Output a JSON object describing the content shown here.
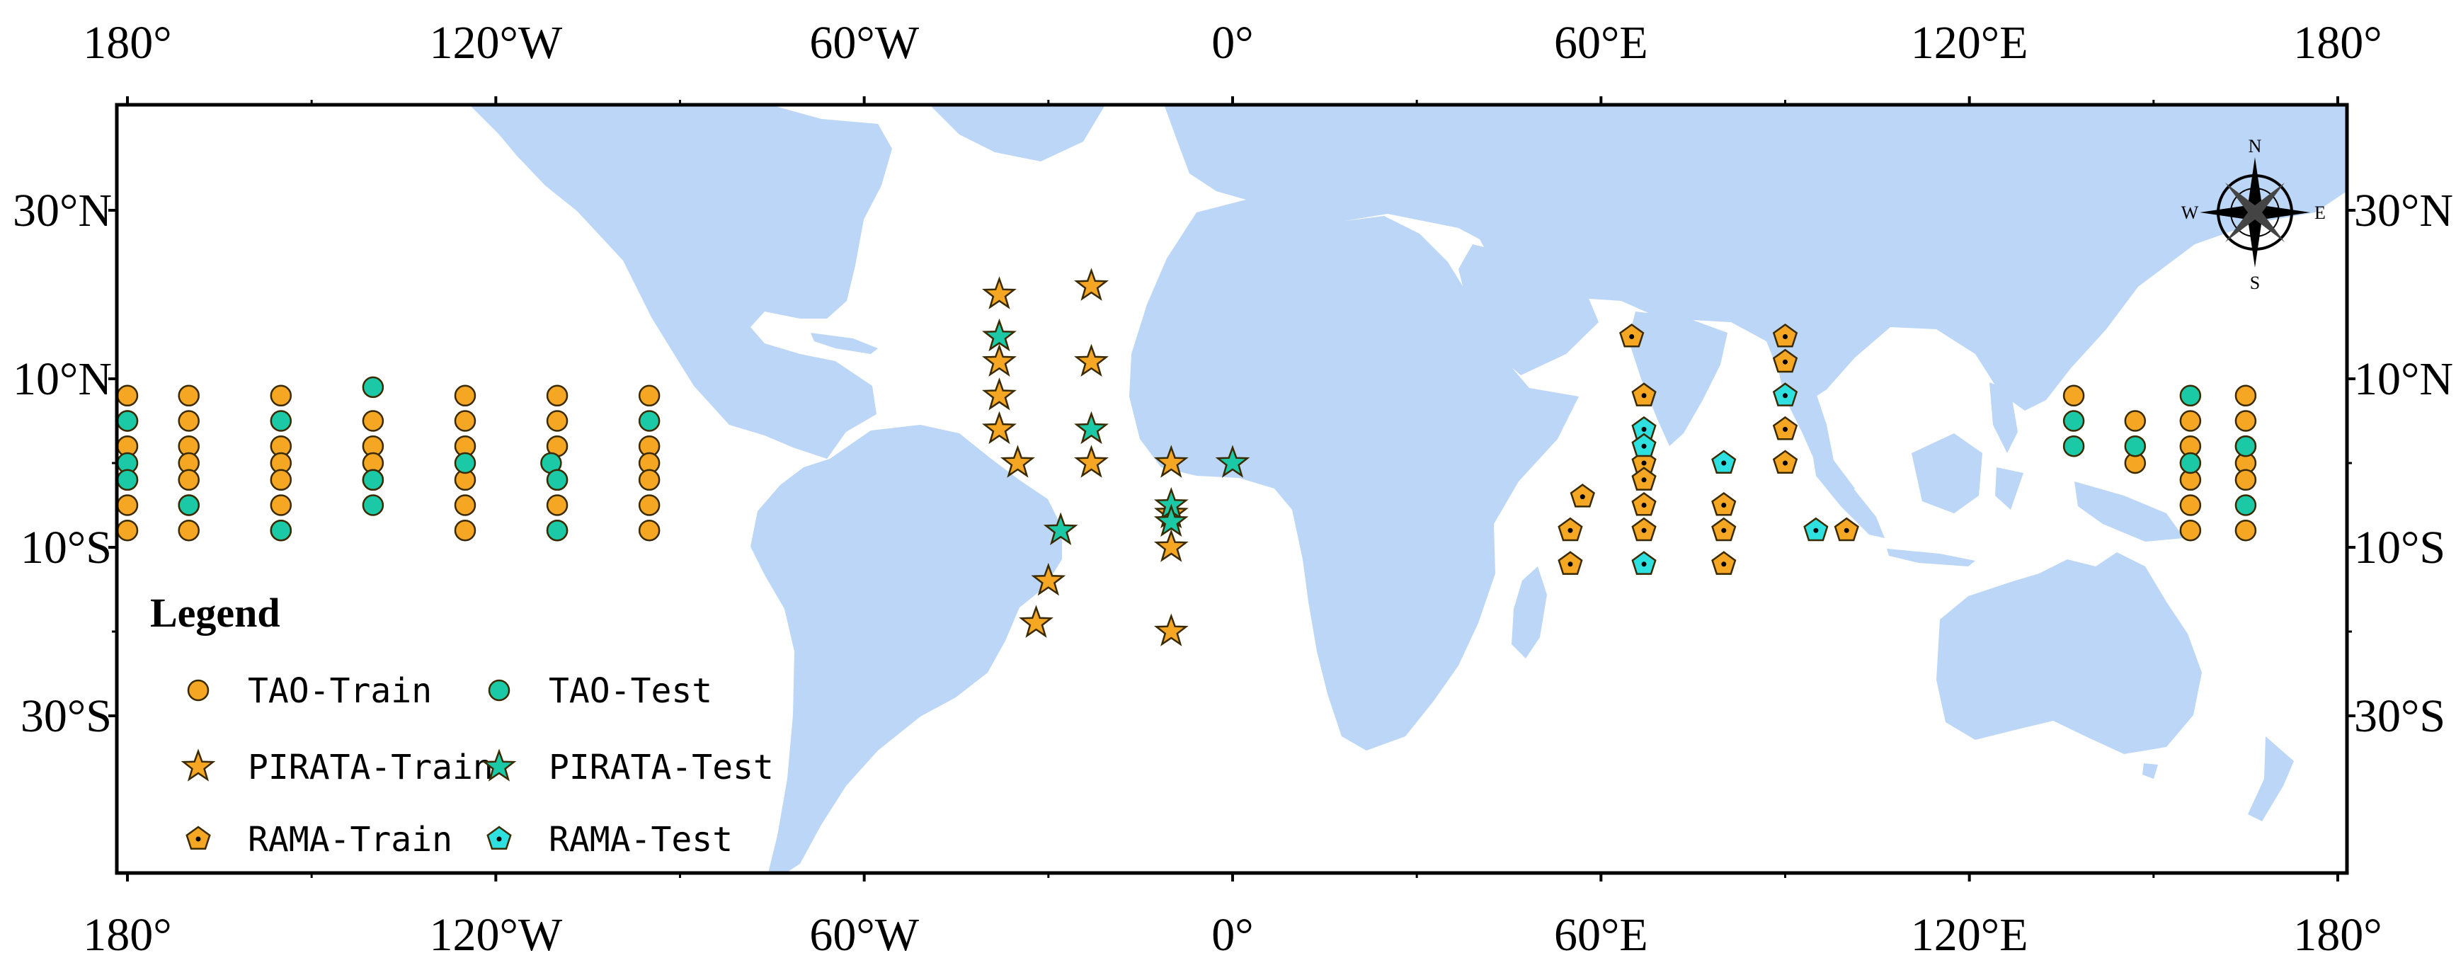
{
  "colors": {
    "land": "#bcd6f7",
    "ocean": "#ffffff",
    "frame": "#000000",
    "train": "#f5a623",
    "test": "#1cc9a6",
    "rama_test": "#2fe0e0",
    "marker_stroke": "#3a2a00"
  },
  "axes": {
    "top_ticks": [
      {
        "lon": -180,
        "label": "180°"
      },
      {
        "lon": -120,
        "label": "120°W"
      },
      {
        "lon": -60,
        "label": "60°W"
      },
      {
        "lon": 0,
        "label": "0°"
      },
      {
        "lon": 60,
        "label": "60°E"
      },
      {
        "lon": 120,
        "label": "120°E"
      },
      {
        "lon": 180,
        "label": "180°"
      }
    ],
    "bottom_ticks": [
      {
        "lon": -180,
        "label": "180°"
      },
      {
        "lon": -120,
        "label": "120°W"
      },
      {
        "lon": -60,
        "label": "60°W"
      },
      {
        "lon": 0,
        "label": "0°"
      },
      {
        "lon": 60,
        "label": "60°E"
      },
      {
        "lon": 120,
        "label": "120°E"
      },
      {
        "lon": 180,
        "label": "180°"
      }
    ],
    "left_ticks": [
      {
        "lat": 30,
        "label": "30°N"
      },
      {
        "lat": 10,
        "label": "10°N"
      },
      {
        "lat": -10,
        "label": "10°S"
      },
      {
        "lat": -30,
        "label": "30°S"
      }
    ],
    "right_ticks": [
      {
        "lat": 30,
        "label": "30°N"
      },
      {
        "lat": 10,
        "label": "10°N"
      },
      {
        "lat": -10,
        "label": "10°S"
      },
      {
        "lat": -30,
        "label": "30°S"
      }
    ]
  },
  "compass": {
    "n": "N",
    "s": "S",
    "e": "E",
    "w": "W"
  },
  "legend": {
    "title": "Legend",
    "items": [
      {
        "label": "TAO-Train",
        "shape": "circle",
        "color": "train"
      },
      {
        "label": "TAO-Test",
        "shape": "circle",
        "color": "test"
      },
      {
        "label": "PIRATA-Train",
        "shape": "star",
        "color": "train"
      },
      {
        "label": "PIRATA-Test",
        "shape": "star",
        "color": "test"
      },
      {
        "label": "RAMA-Train",
        "shape": "pentagon",
        "color": "train"
      },
      {
        "label": "RAMA-Test",
        "shape": "pentagon",
        "color": "rama_test"
      }
    ]
  },
  "buoys": {
    "tao_train": [
      [
        -180,
        8
      ],
      [
        -180,
        5
      ],
      [
        -180,
        2
      ],
      [
        -180,
        -2
      ],
      [
        -180,
        -5
      ],
      [
        -180,
        -8
      ],
      [
        -170,
        8
      ],
      [
        -170,
        5
      ],
      [
        -170,
        2
      ],
      [
        -170,
        0
      ],
      [
        -170,
        -2
      ],
      [
        -170,
        -5
      ],
      [
        -170,
        -8
      ],
      [
        -155,
        8
      ],
      [
        -155,
        2
      ],
      [
        -155,
        0
      ],
      [
        -155,
        -2
      ],
      [
        -155,
        -5
      ],
      [
        -155,
        -8
      ],
      [
        -140,
        5
      ],
      [
        -140,
        2
      ],
      [
        -140,
        0
      ],
      [
        -140,
        -2
      ],
      [
        -125,
        8
      ],
      [
        -125,
        5
      ],
      [
        -125,
        2
      ],
      [
        -125,
        -2
      ],
      [
        -125,
        -5
      ],
      [
        -125,
        -8
      ],
      [
        -110,
        8
      ],
      [
        -110,
        5
      ],
      [
        -110,
        2
      ],
      [
        -110,
        -2
      ],
      [
        -110,
        -5
      ],
      [
        -110,
        -8
      ],
      [
        -95,
        8
      ],
      [
        -95,
        2
      ],
      [
        -95,
        0
      ],
      [
        -95,
        -2
      ],
      [
        -95,
        -5
      ],
      [
        -95,
        -8
      ],
      [
        137,
        8
      ],
      [
        147,
        5
      ],
      [
        147,
        0
      ],
      [
        156,
        5
      ],
      [
        156,
        2
      ],
      [
        156,
        -2
      ],
      [
        156,
        -5
      ],
      [
        156,
        -8
      ],
      [
        165,
        8
      ],
      [
        165,
        5
      ],
      [
        165,
        2
      ],
      [
        165,
        0
      ],
      [
        165,
        -2
      ],
      [
        165,
        -8
      ]
    ],
    "tao_test": [
      [
        -180,
        5
      ],
      [
        -180,
        0
      ],
      [
        -180,
        -2
      ],
      [
        -170,
        -5
      ],
      [
        -155,
        5
      ],
      [
        -155,
        -8
      ],
      [
        -140,
        9
      ],
      [
        -140,
        -2
      ],
      [
        -140,
        -5
      ],
      [
        -125,
        0
      ],
      [
        -111,
        0
      ],
      [
        -110,
        -2
      ],
      [
        -110,
        -8
      ],
      [
        -95,
        5
      ],
      [
        137,
        5
      ],
      [
        137,
        2
      ],
      [
        147,
        2
      ],
      [
        156,
        8
      ],
      [
        156,
        0
      ],
      [
        165,
        2
      ],
      [
        165,
        -5
      ]
    ],
    "pirata_train": [
      [
        -38,
        20
      ],
      [
        -38,
        12
      ],
      [
        -38,
        8
      ],
      [
        -38,
        4
      ],
      [
        -35,
        0
      ],
      [
        -23,
        21
      ],
      [
        -23,
        12
      ],
      [
        -23,
        0
      ],
      [
        -10,
        0
      ],
      [
        -10,
        -6
      ],
      [
        -10,
        -10
      ],
      [
        -10,
        -20
      ],
      [
        -30,
        -14
      ],
      [
        -32,
        -19
      ]
    ],
    "pirata_test": [
      [
        -38,
        15
      ],
      [
        -23,
        4
      ],
      [
        -10,
        -5
      ],
      [
        -10,
        -7
      ],
      [
        0,
        0
      ],
      [
        -28,
        -8
      ]
    ],
    "rama_train": [
      [
        65,
        15
      ],
      [
        67,
        8
      ],
      [
        67,
        0
      ],
      [
        67,
        -2
      ],
      [
        67,
        -5
      ],
      [
        67,
        -8
      ],
      [
        57,
        -4
      ],
      [
        55,
        -8
      ],
      [
        55,
        -12
      ],
      [
        80,
        -5
      ],
      [
        80,
        -8
      ],
      [
        80,
        -12
      ],
      [
        90,
        15
      ],
      [
        90,
        12
      ],
      [
        90,
        4
      ],
      [
        90,
        0
      ],
      [
        100,
        -8
      ]
    ],
    "rama_test": [
      [
        67,
        4
      ],
      [
        67,
        2
      ],
      [
        67,
        -12
      ],
      [
        80,
        0
      ],
      [
        90,
        8
      ],
      [
        95,
        -8
      ]
    ]
  }
}
